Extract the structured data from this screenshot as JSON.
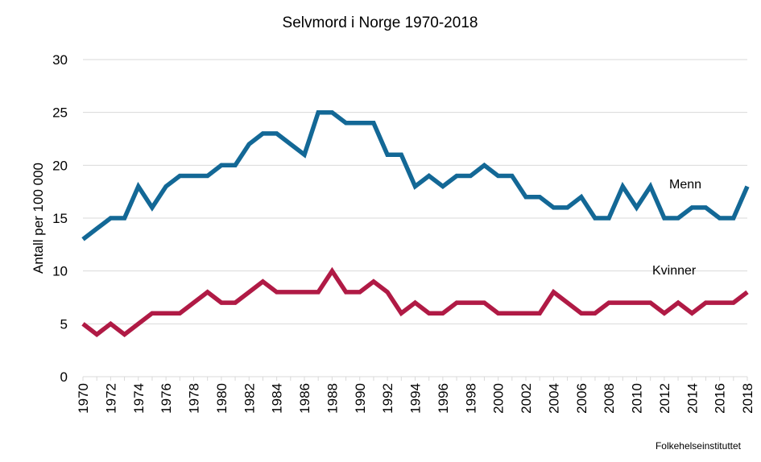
{
  "chart_data": {
    "type": "line",
    "title": "Selvmord i Norge 1970-2018",
    "xlabel": "",
    "ylabel": "Antall per 100 000",
    "ylim": [
      0,
      30
    ],
    "yticks": [
      0,
      5,
      10,
      15,
      20,
      25,
      30
    ],
    "xlim": [
      1970,
      2018
    ],
    "xticks": [
      1970,
      1972,
      1974,
      1976,
      1978,
      1980,
      1982,
      1984,
      1986,
      1988,
      1990,
      1992,
      1994,
      1996,
      1998,
      2000,
      2002,
      2004,
      2006,
      2008,
      2010,
      2012,
      2014,
      2016,
      2018
    ],
    "grid": "horizontal",
    "legend": "inline labels near lines (right side)",
    "x": [
      1970,
      1971,
      1972,
      1973,
      1974,
      1975,
      1976,
      1977,
      1978,
      1979,
      1980,
      1981,
      1982,
      1983,
      1984,
      1985,
      1986,
      1987,
      1988,
      1989,
      1990,
      1991,
      1992,
      1993,
      1994,
      1995,
      1996,
      1997,
      1998,
      1999,
      2000,
      2001,
      2002,
      2003,
      2004,
      2005,
      2006,
      2007,
      2008,
      2009,
      2010,
      2011,
      2012,
      2013,
      2014,
      2015,
      2016,
      2017,
      2018
    ],
    "series": [
      {
        "name": "Menn",
        "color": "#136896",
        "values": [
          13,
          14,
          15,
          15,
          18,
          16,
          18,
          19,
          19,
          19,
          20,
          20,
          22,
          23,
          23,
          22,
          21,
          25,
          25,
          24,
          24,
          24,
          21,
          21,
          18,
          19,
          18,
          19,
          19,
          20,
          19,
          19,
          17,
          17,
          16,
          16,
          17,
          15,
          15,
          18,
          16,
          18,
          15,
          15,
          16,
          16,
          15,
          15,
          18
        ]
      },
      {
        "name": "Kvinner",
        "color": "#b01a45",
        "values": [
          5,
          4,
          5,
          4,
          5,
          6,
          6,
          6,
          7,
          8,
          7,
          7,
          8,
          9,
          8,
          8,
          8,
          8,
          10,
          8,
          8,
          9,
          8,
          6,
          7,
          6,
          6,
          7,
          7,
          7,
          6,
          6,
          6,
          6,
          8,
          7,
          6,
          6,
          7,
          7,
          7,
          7,
          6,
          7,
          6,
          7,
          7,
          7,
          8
        ]
      }
    ],
    "source": "Folkehelseinstituttet"
  }
}
